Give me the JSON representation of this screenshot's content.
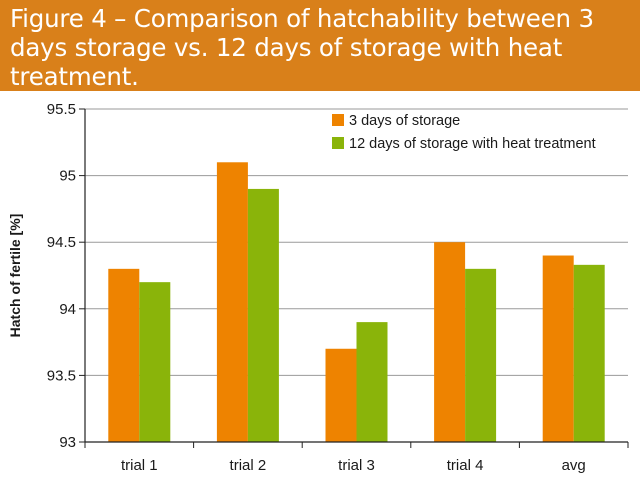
{
  "colors": {
    "banner": "#d9801a",
    "series_1": "#ee8300",
    "series_2": "#8ab40a",
    "grid": "#9a9a9a",
    "axis": "#222222"
  },
  "chart_data": {
    "type": "bar",
    "title": "Figure 4 – Comparison of hatchability between 3 days storage vs. 12 days of storage with heat treatment.",
    "xlabel": "",
    "ylabel": "Hatch of fertile [%]",
    "categories": [
      "trial 1",
      "trial 2",
      "trial 3",
      "trial 4",
      "avg"
    ],
    "series": [
      {
        "name": "3 days of storage",
        "values": [
          94.3,
          95.1,
          93.7,
          94.5,
          94.4
        ]
      },
      {
        "name": "12 days of storage with heat treatment",
        "values": [
          94.2,
          94.9,
          93.9,
          94.3,
          94.33
        ]
      }
    ],
    "ylim": [
      93,
      95.5
    ],
    "yticks": [
      "93",
      "93.5",
      "94",
      "94.5",
      "95",
      "95.5"
    ],
    "grid": true,
    "legend_position": "top-right"
  }
}
